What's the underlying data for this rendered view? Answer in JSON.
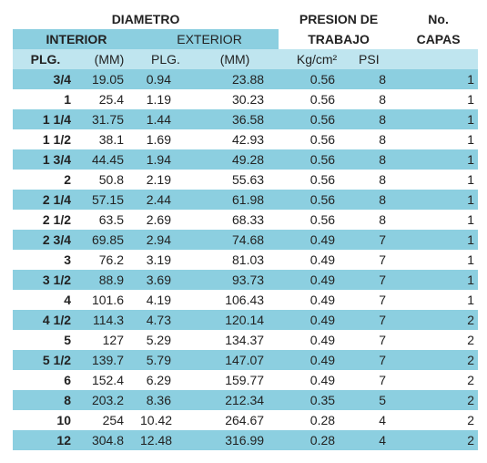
{
  "headers": {
    "diametro": "DIAMETRO",
    "interior": "INTERIOR",
    "exterior": "EXTERIOR",
    "presion_line1": "PRESION DE",
    "presion_line2": "TRABAJO",
    "capas_line1": "No.",
    "capas_line2": "CAPAS",
    "plg_int": "PLG.",
    "mm_int": "(MM)",
    "plg_ext": "PLG.",
    "mm_ext": "(MM)",
    "kg": "Kg/cm²",
    "psi": "PSI"
  },
  "rows": [
    {
      "plg": "3/4",
      "mm_int": "19.05",
      "plg_ext": "0.94",
      "mm_ext": "23.88",
      "kg": "0.56",
      "psi": "8",
      "capas": "1"
    },
    {
      "plg": "1",
      "mm_int": "25.4",
      "plg_ext": "1.19",
      "mm_ext": "30.23",
      "kg": "0.56",
      "psi": "8",
      "capas": "1"
    },
    {
      "plg": "1 1/4",
      "mm_int": "31.75",
      "plg_ext": "1.44",
      "mm_ext": "36.58",
      "kg": "0.56",
      "psi": "8",
      "capas": "1"
    },
    {
      "plg": "1 1/2",
      "mm_int": "38.1",
      "plg_ext": "1.69",
      "mm_ext": "42.93",
      "kg": "0.56",
      "psi": "8",
      "capas": "1"
    },
    {
      "plg": "1 3/4",
      "mm_int": "44.45",
      "plg_ext": "1.94",
      "mm_ext": "49.28",
      "kg": "0.56",
      "psi": "8",
      "capas": "1"
    },
    {
      "plg": "2",
      "mm_int": "50.8",
      "plg_ext": "2.19",
      "mm_ext": "55.63",
      "kg": "0.56",
      "psi": "8",
      "capas": "1"
    },
    {
      "plg": "2 1/4",
      "mm_int": "57.15",
      "plg_ext": "2.44",
      "mm_ext": "61.98",
      "kg": "0.56",
      "psi": "8",
      "capas": "1"
    },
    {
      "plg": "2 1/2",
      "mm_int": "63.5",
      "plg_ext": "2.69",
      "mm_ext": "68.33",
      "kg": "0.56",
      "psi": "8",
      "capas": "1"
    },
    {
      "plg": "2 3/4",
      "mm_int": "69.85",
      "plg_ext": "2.94",
      "mm_ext": "74.68",
      "kg": "0.49",
      "psi": "7",
      "capas": "1"
    },
    {
      "plg": "3",
      "mm_int": "76.2",
      "plg_ext": "3.19",
      "mm_ext": "81.03",
      "kg": "0.49",
      "psi": "7",
      "capas": "1"
    },
    {
      "plg": "3 1/2",
      "mm_int": "88.9",
      "plg_ext": "3.69",
      "mm_ext": "93.73",
      "kg": "0.49",
      "psi": "7",
      "capas": "1"
    },
    {
      "plg": "4",
      "mm_int": "101.6",
      "plg_ext": "4.19",
      "mm_ext": "106.43",
      "kg": "0.49",
      "psi": "7",
      "capas": "1"
    },
    {
      "plg": "4 1/2",
      "mm_int": "114.3",
      "plg_ext": "4.73",
      "mm_ext": "120.14",
      "kg": "0.49",
      "psi": "7",
      "capas": "2"
    },
    {
      "plg": "5",
      "mm_int": "127",
      "plg_ext": "5.29",
      "mm_ext": "134.37",
      "kg": "0.49",
      "psi": "7",
      "capas": "2"
    },
    {
      "plg": "5 1/2",
      "mm_int": "139.7",
      "plg_ext": "5.79",
      "mm_ext": "147.07",
      "kg": "0.49",
      "psi": "7",
      "capas": "2"
    },
    {
      "plg": "6",
      "mm_int": "152.4",
      "plg_ext": "6.29",
      "mm_ext": "159.77",
      "kg": "0.49",
      "psi": "7",
      "capas": "2"
    },
    {
      "plg": "8",
      "mm_int": "203.2",
      "plg_ext": "8.36",
      "mm_ext": "212.34",
      "kg": "0.35",
      "psi": "5",
      "capas": "2"
    },
    {
      "plg": "10",
      "mm_int": "254",
      "plg_ext": "10.42",
      "mm_ext": "264.67",
      "kg": "0.28",
      "psi": "4",
      "capas": "2"
    },
    {
      "plg": "12",
      "mm_int": "304.8",
      "plg_ext": "12.48",
      "mm_ext": "316.99",
      "kg": "0.28",
      "psi": "4",
      "capas": "2"
    }
  ],
  "colors": {
    "band": "#8ccfe0",
    "header_light": "#bfe5ef",
    "text": "#222222"
  }
}
